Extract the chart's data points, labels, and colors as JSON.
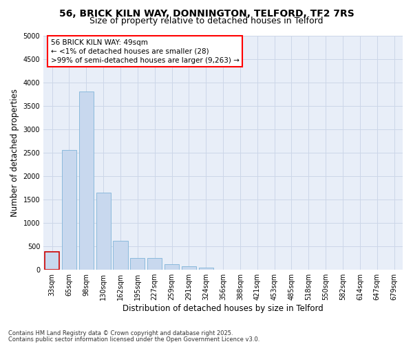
{
  "title1": "56, BRICK KILN WAY, DONNINGTON, TELFORD, TF2 7RS",
  "title2": "Size of property relative to detached houses in Telford",
  "xlabel": "Distribution of detached houses by size in Telford",
  "ylabel": "Number of detached properties",
  "categories": [
    "33sqm",
    "65sqm",
    "98sqm",
    "130sqm",
    "162sqm",
    "195sqm",
    "227sqm",
    "259sqm",
    "291sqm",
    "324sqm",
    "356sqm",
    "388sqm",
    "421sqm",
    "453sqm",
    "485sqm",
    "518sqm",
    "550sqm",
    "582sqm",
    "614sqm",
    "647sqm",
    "679sqm"
  ],
  "values": [
    390,
    2550,
    3800,
    1650,
    625,
    250,
    250,
    125,
    75,
    50,
    0,
    0,
    0,
    0,
    0,
    0,
    0,
    0,
    0,
    0,
    0
  ],
  "bar_color": "#c8d8ee",
  "bar_edge_color": "#7fb4d8",
  "highlight_bar_index": 0,
  "highlight_bar_edge_color": "#cc0000",
  "annotation_text": "56 BRICK KILN WAY: 49sqm\n← <1% of detached houses are smaller (28)\n>99% of semi-detached houses are larger (9,263) →",
  "footer_line1": "Contains HM Land Registry data © Crown copyright and database right 2025.",
  "footer_line2": "Contains public sector information licensed under the Open Government Licence v3.0.",
  "ylim": [
    0,
    5000
  ],
  "yticks": [
    0,
    500,
    1000,
    1500,
    2000,
    2500,
    3000,
    3500,
    4000,
    4500,
    5000
  ],
  "grid_color": "#ccd6e8",
  "bg_color": "#e8eef8",
  "fig_bg_color": "#ffffff",
  "title1_fontsize": 10,
  "title2_fontsize": 9,
  "tick_fontsize": 7,
  "label_fontsize": 8.5,
  "annotation_fontsize": 7.5,
  "footer_fontsize": 6
}
